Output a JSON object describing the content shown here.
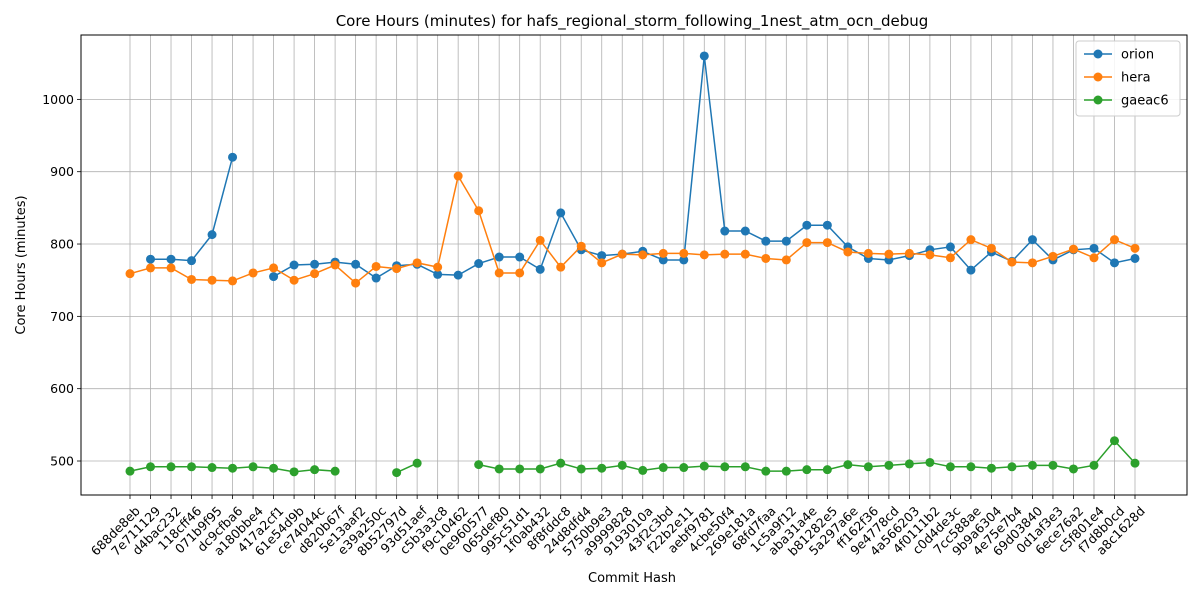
{
  "chart_data": {
    "type": "line",
    "title": "Core Hours (minutes) for hafs_regional_storm_following_1nest_atm_ocn_debug",
    "xlabel": "Commit Hash",
    "ylabel": "Core Hours (minutes)",
    "ylim": [
      453,
      1089
    ],
    "yticks": [
      500,
      600,
      700,
      800,
      900,
      1000
    ],
    "grid": true,
    "legend_position": "top-right",
    "categories": [
      "688de8eb",
      "7e711129",
      "d4bac232",
      "118cff46",
      "071b9f95",
      "dc9cfba6",
      "a180bbe4",
      "417a2cf1",
      "61e54d9b",
      "ce74044c",
      "d820b67f",
      "5e13aaf2",
      "e39a250c",
      "8b52797d",
      "93d51aef",
      "c5b3a3c8",
      "f9c10462",
      "0e960577",
      "065def80",
      "995c51d1",
      "1f0ab432",
      "8f8fddc8",
      "24d8dfd4",
      "5750b9e3",
      "a9999828",
      "9193010a",
      "43f2c3bd",
      "f22b2e11",
      "aebf9781",
      "4cbe50f4",
      "269e181a",
      "68fd7faa",
      "1c5a9f12",
      "aba31a4e",
      "b81282e5",
      "5a297a6e",
      "ff162f36",
      "9e4778cd",
      "4a566203",
      "4f0111b2",
      "c0d4de3c",
      "7cc588ae",
      "9b9a6304",
      "4e75e7b4",
      "69d03840",
      "0d1af3e3",
      "6ece76a2",
      "c5f801e4",
      "f7d8b0cd",
      "a8c1628d"
    ],
    "series": [
      {
        "name": "orion",
        "color": "#1f77b4",
        "values": [
          null,
          779,
          779,
          777,
          813,
          920,
          null,
          755,
          771,
          772,
          775,
          772,
          753,
          770,
          772,
          758,
          757,
          773,
          782,
          782,
          765,
          843,
          792,
          784,
          786,
          790,
          778,
          778,
          1060,
          818,
          818,
          804,
          804,
          826,
          826,
          796,
          780,
          778,
          784,
          792,
          796,
          764,
          789,
          776,
          806,
          778,
          792,
          794,
          774,
          780
        ]
      },
      {
        "name": "hera",
        "color": "#ff7f0e",
        "values": [
          759,
          767,
          767,
          751,
          750,
          749,
          760,
          767,
          750,
          759,
          771,
          746,
          769,
          766,
          774,
          768,
          894,
          846,
          760,
          760,
          805,
          768,
          797,
          774,
          786,
          785,
          787,
          787,
          785,
          786,
          786,
          780,
          778,
          802,
          802,
          789,
          787,
          786,
          787,
          785,
          781,
          806,
          794,
          775,
          774,
          783,
          793,
          781,
          806,
          794
        ]
      },
      {
        "name": "gaeac6",
        "color": "#2ca02c",
        "values": [
          486,
          492,
          492,
          492,
          491,
          490,
          492,
          490,
          485,
          488,
          486,
          null,
          null,
          484,
          497,
          null,
          null,
          495,
          489,
          489,
          489,
          497,
          489,
          490,
          494,
          487,
          491,
          491,
          493,
          492,
          492,
          486,
          486,
          488,
          488,
          495,
          492,
          494,
          496,
          498,
          492,
          492,
          490,
          492,
          494,
          494,
          489,
          494,
          528,
          497
        ]
      }
    ]
  }
}
